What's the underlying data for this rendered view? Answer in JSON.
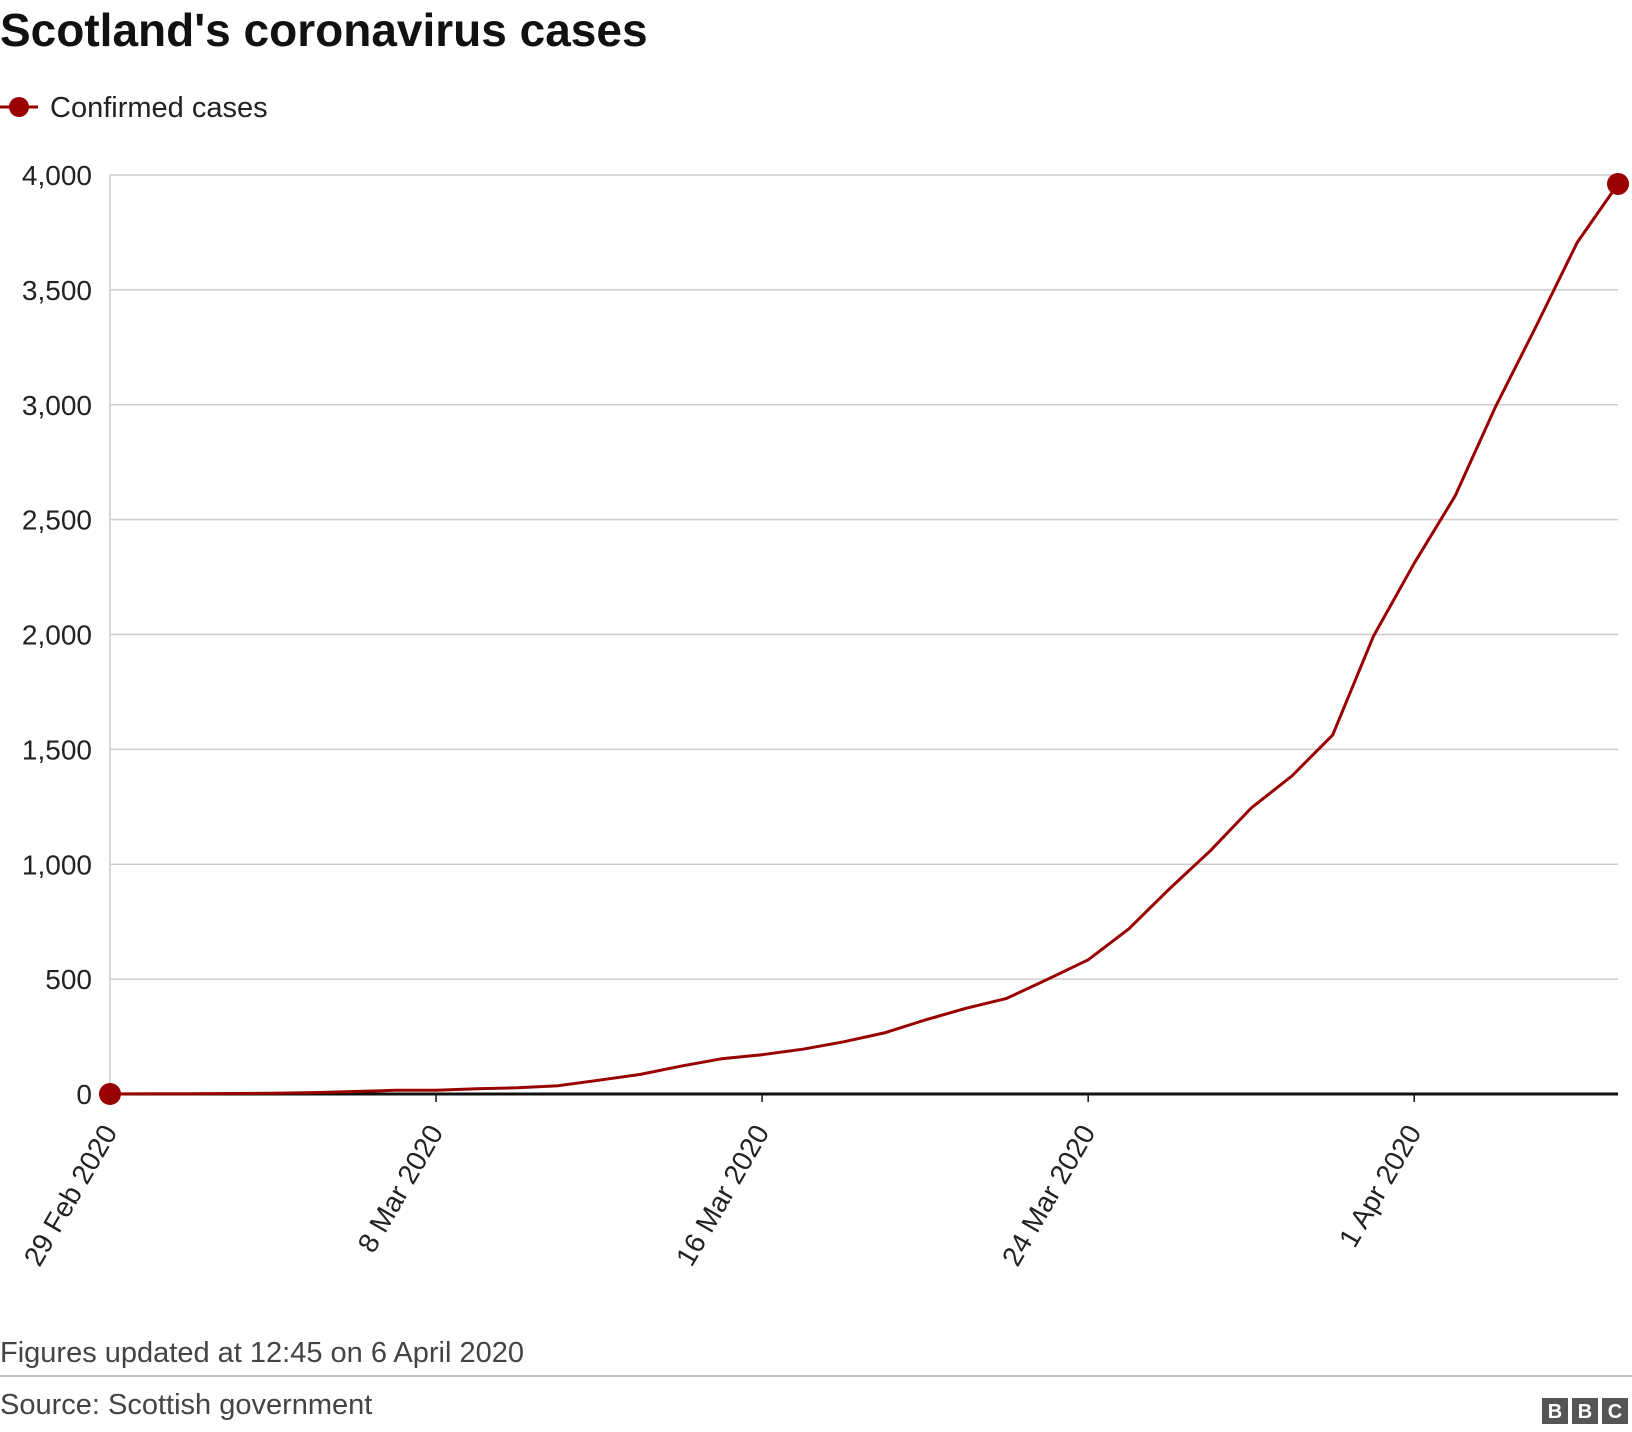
{
  "chart_data": {
    "type": "line",
    "title": "Scotland's coronavirus cases",
    "xlabel": "",
    "ylabel": "",
    "ylim": [
      0,
      4000
    ],
    "y_ticks": [
      0,
      500,
      1000,
      1500,
      2000,
      2500,
      3000,
      3500,
      4000
    ],
    "y_tick_labels": [
      "0",
      "500",
      "1,000",
      "1,500",
      "2,000",
      "2,500",
      "3,000",
      "3,500",
      "4,000"
    ],
    "x_range": [
      "29 Feb 2020",
      "6 Apr 2020"
    ],
    "x_ticks": [
      "29 Feb 2020",
      "8 Mar 2020",
      "16 Mar 2020",
      "24 Mar 2020",
      "1 Apr 2020"
    ],
    "grid": true,
    "legend_position": "top-left",
    "series": [
      {
        "name": "Confirmed cases",
        "color": "#990000",
        "points": [
          {
            "x": "29 Feb 2020",
            "y": 0
          },
          {
            "x": "1 Mar 2020",
            "y": 1
          },
          {
            "x": "2 Mar 2020",
            "y": 1
          },
          {
            "x": "3 Mar 2020",
            "y": 2
          },
          {
            "x": "4 Mar 2020",
            "y": 3
          },
          {
            "x": "5 Mar 2020",
            "y": 6
          },
          {
            "x": "6 Mar 2020",
            "y": 11
          },
          {
            "x": "7 Mar 2020",
            "y": 16
          },
          {
            "x": "8 Mar 2020",
            "y": 16
          },
          {
            "x": "9 Mar 2020",
            "y": 23
          },
          {
            "x": "10 Mar 2020",
            "y": 27
          },
          {
            "x": "11 Mar 2020",
            "y": 36
          },
          {
            "x": "12 Mar 2020",
            "y": 60
          },
          {
            "x": "13 Mar 2020",
            "y": 85
          },
          {
            "x": "14 Mar 2020",
            "y": 121
          },
          {
            "x": "15 Mar 2020",
            "y": 153
          },
          {
            "x": "16 Mar 2020",
            "y": 171
          },
          {
            "x": "17 Mar 2020",
            "y": 195
          },
          {
            "x": "18 Mar 2020",
            "y": 227
          },
          {
            "x": "19 Mar 2020",
            "y": 266
          },
          {
            "x": "20 Mar 2020",
            "y": 322
          },
          {
            "x": "21 Mar 2020",
            "y": 373
          },
          {
            "x": "22 Mar 2020",
            "y": 416
          },
          {
            "x": "23 Mar 2020",
            "y": 499
          },
          {
            "x": "24 Mar 2020",
            "y": 584
          },
          {
            "x": "25 Mar 2020",
            "y": 719
          },
          {
            "x": "26 Mar 2020",
            "y": 894
          },
          {
            "x": "27 Mar 2020",
            "y": 1059
          },
          {
            "x": "28 Mar 2020",
            "y": 1245
          },
          {
            "x": "29 Mar 2020",
            "y": 1384
          },
          {
            "x": "30 Mar 2020",
            "y": 1563
          },
          {
            "x": "31 Mar 2020",
            "y": 1993
          },
          {
            "x": "1 Apr 2020",
            "y": 2310
          },
          {
            "x": "2 Apr 2020",
            "y": 2602
          },
          {
            "x": "3 Apr 2020",
            "y": 2993
          },
          {
            "x": "4 Apr 2020",
            "y": 3345
          },
          {
            "x": "5 Apr 2020",
            "y": 3706
          },
          {
            "x": "6 Apr 2020",
            "y": 3961
          }
        ]
      }
    ],
    "note": "Figures updated at 12:45 on 6 April 2020",
    "source": "Source: Scottish government"
  },
  "branding": {
    "letters": [
      "B",
      "B",
      "C"
    ]
  }
}
